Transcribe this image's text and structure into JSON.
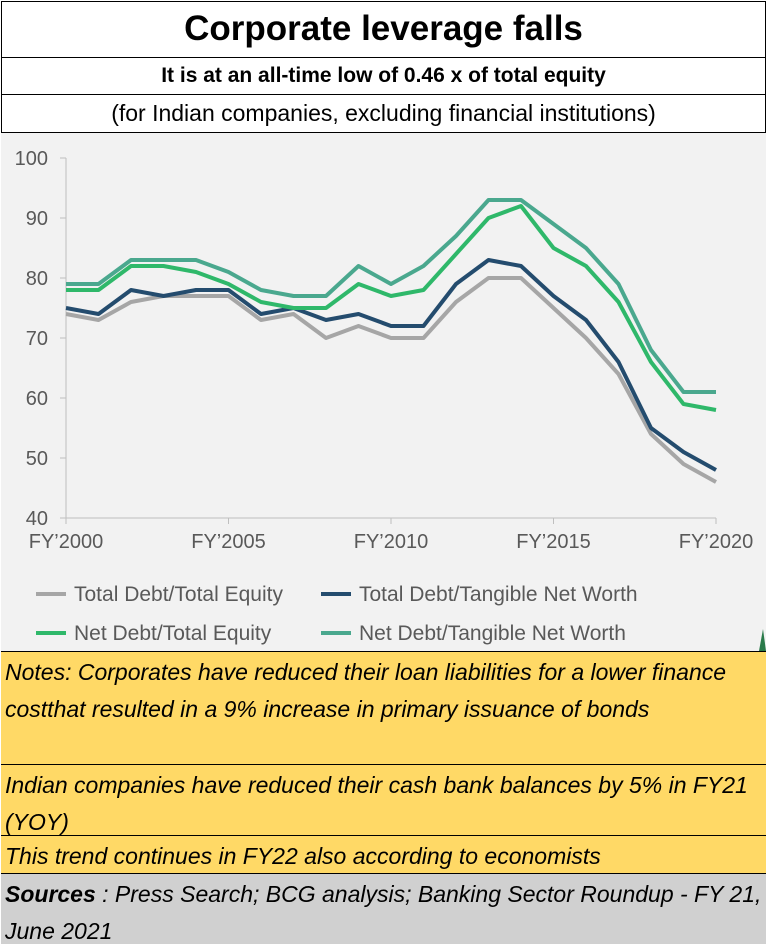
{
  "header": {
    "title": "Corporate leverage falls",
    "subtitle": "It is at an all-time low of 0.46 x  of total equity",
    "caption": "(for Indian companies, excluding financial institutions)"
  },
  "chart_data": {
    "type": "line",
    "x": [
      "FY'2000",
      "FY'2001",
      "FY'2002",
      "FY'2003",
      "FY'2004",
      "FY'2005",
      "FY'2006",
      "FY'2007",
      "FY'2008",
      "FY'2009",
      "FY'2010",
      "FY'2011",
      "FY'2012",
      "FY'2013",
      "FY'2014",
      "FY'2015",
      "FY'2016",
      "FY'2017",
      "FY'2018",
      "FY'2019",
      "FY'2020"
    ],
    "xtick_labels": [
      "FY’2000",
      "FY’2005",
      "FY’2010",
      "FY’2015",
      "FY’2020"
    ],
    "xtick_positions": [
      0,
      5,
      10,
      15,
      20
    ],
    "ylim": [
      40,
      100
    ],
    "yticks": [
      100,
      90,
      80,
      70,
      60,
      50,
      40
    ],
    "grid": false,
    "legend_position": "bottom",
    "series": [
      {
        "name": "Total Debt/Total Equity",
        "color": "#a6a6a6",
        "values": [
          74,
          73,
          76,
          77,
          77,
          77,
          73,
          74,
          70,
          72,
          70,
          70,
          76,
          80,
          80,
          75,
          70,
          64,
          54,
          49,
          46
        ]
      },
      {
        "name": "Total Debt/Tangible Net Worth",
        "color": "#244c6e",
        "values": [
          75,
          74,
          78,
          77,
          78,
          78,
          74,
          75,
          73,
          74,
          72,
          72,
          79,
          83,
          82,
          77,
          73,
          66,
          55,
          51,
          48
        ]
      },
      {
        "name": "Net Debt/Total Equity",
        "color": "#2fb86a",
        "values": [
          78,
          78,
          82,
          82,
          81,
          79,
          76,
          75,
          75,
          79,
          77,
          78,
          84,
          90,
          92,
          85,
          82,
          76,
          66,
          59,
          58
        ]
      },
      {
        "name": "Net Debt/Tangible Net Worth",
        "color": "#4aa88e",
        "values": [
          79,
          79,
          83,
          83,
          83,
          81,
          78,
          77,
          77,
          82,
          79,
          82,
          87,
          93,
          93,
          89,
          85,
          79,
          68,
          61,
          61
        ]
      }
    ]
  },
  "notes": {
    "note1": "Notes:  Corporates have reduced their loan liabilities for a lower finance costthat resulted in a 9% increase in primary issuance of bonds",
    "note2": "Indian companies have reduced their cash bank balances by 5% in FY21 (YOY)",
    "note3": "This trend continues in FY22 also according to economists"
  },
  "sources": {
    "label": "Sources",
    "text": " : Press Search; BCG analysis; Banking Sector Roundup - FY 21, June 2021"
  }
}
